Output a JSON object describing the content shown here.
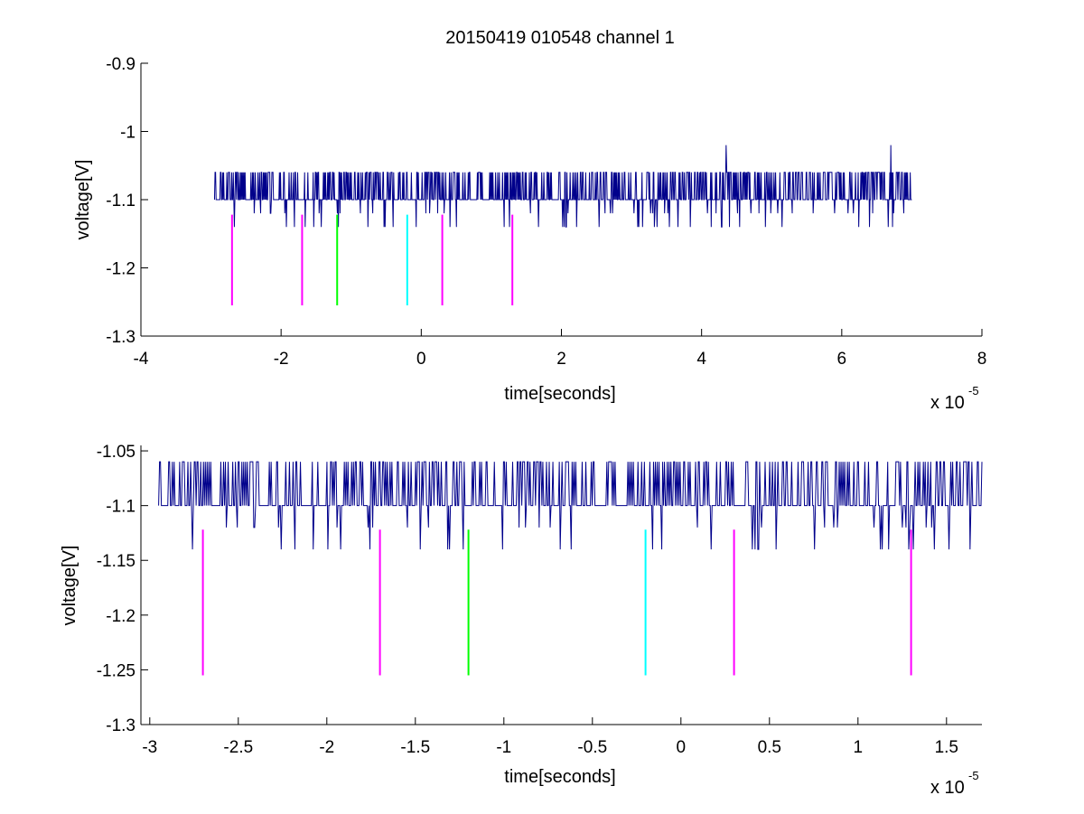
{
  "chart_data": [
    {
      "type": "line",
      "title": "20150419 010548 channel 1",
      "xlabel": "time[seconds]",
      "ylabel": "voltage[V]",
      "x_exponent_label": "x 10",
      "x_exponent_power": "-5",
      "xlim": [
        -4,
        8
      ],
      "ylim": [
        -1.3,
        -0.9
      ],
      "x_ticks": [
        -4,
        -2,
        0,
        2,
        4,
        6,
        8
      ],
      "x_tick_labels": [
        "-4",
        "-2",
        "0",
        "2",
        "4",
        "6",
        "8"
      ],
      "y_ticks": [
        -1.3,
        -1.2,
        -1.1,
        -1,
        -0.9
      ],
      "y_tick_labels": [
        "-1.3",
        "-1.2",
        "-1.1",
        "-1",
        "-0.9"
      ],
      "grid": false,
      "signal": {
        "color": "#00008b",
        "x_range": [
          -2.95,
          7.0
        ],
        "baseline": -1.1,
        "high_level": -1.06,
        "low_levels": [
          -1.12,
          -1.14
        ],
        "spikes": [
          {
            "x": 4.35,
            "y": -1.02
          },
          {
            "x": 6.7,
            "y": -1.02
          }
        ]
      },
      "markers": [
        {
          "x": -2.7,
          "y_range": [
            -1.255,
            -1.122
          ],
          "color": "#ff00ff"
        },
        {
          "x": -1.7,
          "y_range": [
            -1.255,
            -1.122
          ],
          "color": "#ff00ff"
        },
        {
          "x": -1.2,
          "y_range": [
            -1.255,
            -1.122
          ],
          "color": "#00ff00"
        },
        {
          "x": -0.2,
          "y_range": [
            -1.255,
            -1.122
          ],
          "color": "#00ffff"
        },
        {
          "x": 0.3,
          "y_range": [
            -1.255,
            -1.122
          ],
          "color": "#ff00ff"
        },
        {
          "x": 1.3,
          "y_range": [
            -1.255,
            -1.122
          ],
          "color": "#ff00ff"
        }
      ]
    },
    {
      "type": "line",
      "title": "",
      "xlabel": "time[seconds]",
      "ylabel": "voltage[V]",
      "x_exponent_label": "x 10",
      "x_exponent_power": "-5",
      "xlim": [
        -3.05,
        1.7
      ],
      "ylim": [
        -1.3,
        -1.045
      ],
      "x_ticks": [
        -3,
        -2.5,
        -2,
        -1.5,
        -1,
        -0.5,
        0,
        0.5,
        1,
        1.5
      ],
      "x_tick_labels": [
        "-3",
        "-2.5",
        "-2",
        "-1.5",
        "-1",
        "-0.5",
        "0",
        "0.5",
        "1",
        "1.5"
      ],
      "y_ticks": [
        -1.3,
        -1.25,
        -1.2,
        -1.15,
        -1.1,
        -1.05
      ],
      "y_tick_labels": [
        "-1.3",
        "-1.25",
        "-1.2",
        "-1.15",
        "-1.1",
        "-1.05"
      ],
      "grid": false,
      "signal": {
        "color": "#00008b",
        "x_range": [
          -2.95,
          1.7
        ],
        "baseline": -1.1,
        "high_level": -1.06,
        "low_levels": [
          -1.12,
          -1.14
        ],
        "spikes": []
      },
      "markers": [
        {
          "x": -2.7,
          "y_range": [
            -1.255,
            -1.122
          ],
          "color": "#ff00ff"
        },
        {
          "x": -1.7,
          "y_range": [
            -1.255,
            -1.122
          ],
          "color": "#ff00ff"
        },
        {
          "x": -1.2,
          "y_range": [
            -1.255,
            -1.122
          ],
          "color": "#00ff00"
        },
        {
          "x": -0.2,
          "y_range": [
            -1.255,
            -1.122
          ],
          "color": "#00ffff"
        },
        {
          "x": 0.3,
          "y_range": [
            -1.255,
            -1.122
          ],
          "color": "#ff00ff"
        },
        {
          "x": 1.3,
          "y_range": [
            -1.255,
            -1.122
          ],
          "color": "#ff00ff"
        }
      ]
    }
  ]
}
